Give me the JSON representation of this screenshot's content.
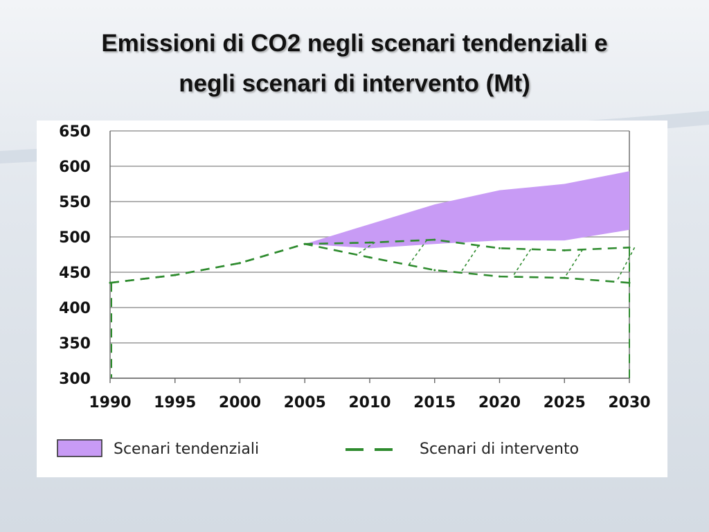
{
  "slide": {
    "title_line1": "Emissioni di CO2 negli scenari tendenziali e",
    "title_line2": "negli scenari di intervento (Mt)"
  },
  "colors": {
    "tendenziali_fill": "#c89bf5",
    "intervento_line": "#2e8b2e",
    "gridline": "#999999",
    "axis": "#666666"
  },
  "chart_data": {
    "type": "area",
    "title": "",
    "xlabel": "",
    "ylabel": "",
    "x": [
      1990,
      1995,
      2000,
      2005,
      2010,
      2015,
      2020,
      2025,
      2030
    ],
    "ylim": [
      300,
      650
    ],
    "yticks": [
      300,
      350,
      400,
      450,
      500,
      550,
      600,
      650
    ],
    "xticks": [
      1990,
      1995,
      2000,
      2005,
      2010,
      2015,
      2020,
      2025,
      2030
    ],
    "grid": "horizontal",
    "legend_position": "bottom",
    "series": [
      {
        "name": "Scenari tendenziali",
        "style": "filled band",
        "x": [
          2005,
          2010,
          2015,
          2020,
          2025,
          2030
        ],
        "upper": [
          490,
          518,
          546,
          566,
          575,
          593
        ],
        "lower": [
          490,
          484,
          490,
          495,
          495,
          510
        ]
      },
      {
        "name": "Scenari di intervento",
        "style": "dashed band",
        "x": [
          1990,
          1995,
          2000,
          2005,
          2010,
          2015,
          2020,
          2025,
          2030
        ],
        "upper": [
          435,
          446,
          463,
          490,
          492,
          496,
          484,
          481,
          485
        ],
        "lower": [
          435,
          446,
          463,
          490,
          471,
          453,
          444,
          442,
          435
        ]
      }
    ]
  }
}
